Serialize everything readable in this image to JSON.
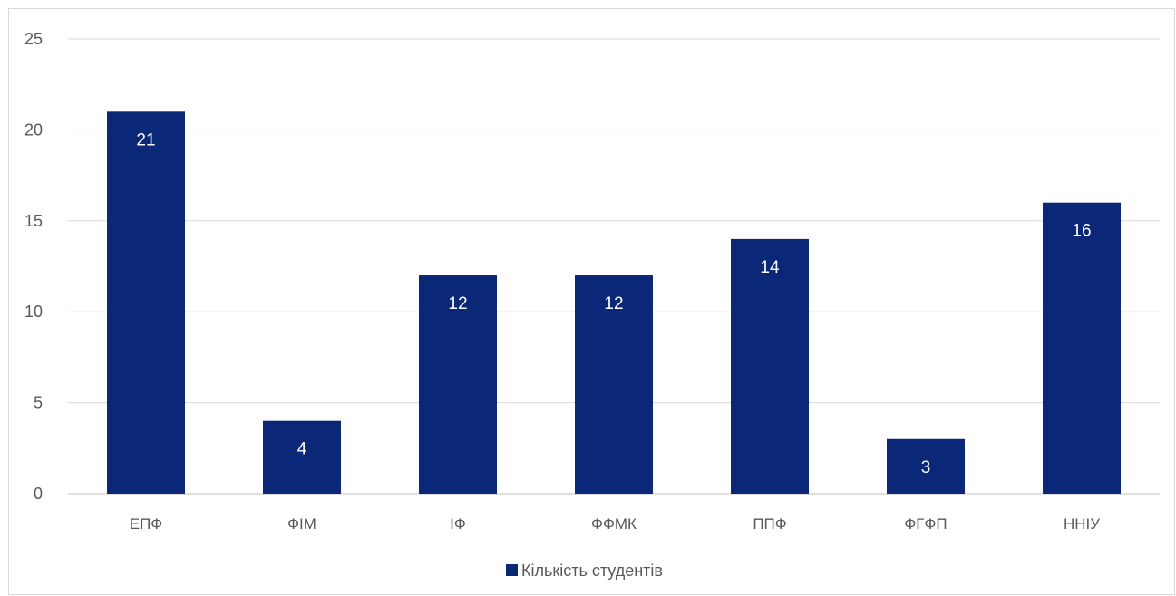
{
  "chart_data": {
    "type": "bar",
    "categories": [
      "ЕПФ",
      "ФІМ",
      "ІФ",
      "ФФМК",
      "ППФ",
      "ФГФП",
      "ННІУ"
    ],
    "series": [
      {
        "name": "Кількість студентів",
        "values": [
          21,
          4,
          12,
          12,
          14,
          3,
          16
        ],
        "color": "#0b2878"
      }
    ],
    "ylim": [
      0,
      25
    ],
    "yticks": [
      0,
      5,
      10,
      15,
      20,
      25
    ],
    "grid": true,
    "legend_position": "bottom",
    "data_labels": true,
    "title": "",
    "xlabel": "",
    "ylabel": ""
  }
}
